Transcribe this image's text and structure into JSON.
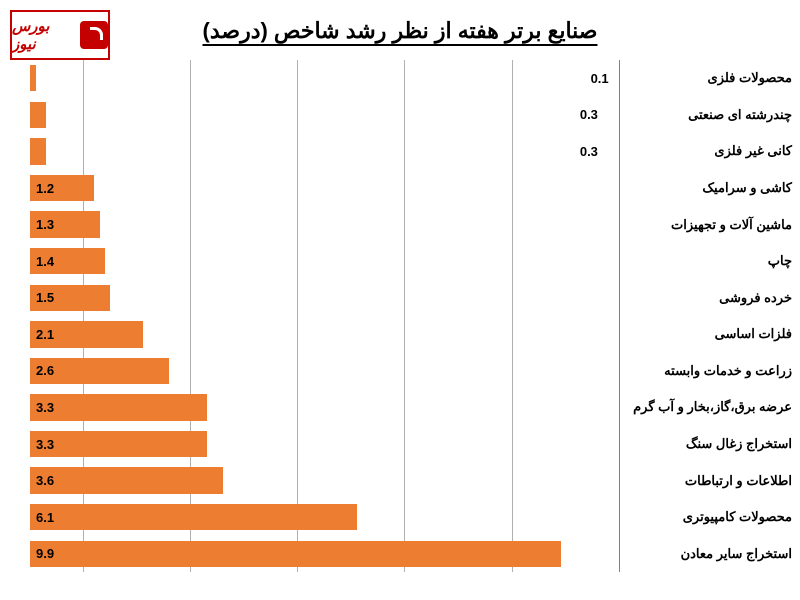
{
  "logo_text": "بورس نیوز",
  "title": "صنایع برتر هفته از نظر رشد شاخص (درصد)",
  "chart": {
    "type": "bar-horizontal",
    "max_value": 11,
    "bar_color": "#ed7d31",
    "background": "#ffffff",
    "grid_color": "#b0b0b0",
    "title_fontsize": 22,
    "label_fontsize": 13,
    "value_fontsize": 13,
    "gridlines": [
      0,
      2,
      4,
      6,
      8,
      10
    ],
    "items": [
      {
        "label": "محصولات فلزی",
        "value": 0.1
      },
      {
        "label": "چندرشته ای صنعتی",
        "value": 0.3
      },
      {
        "label": "کانی غیر فلزی",
        "value": 0.3
      },
      {
        "label": "کاشی و سرامیک",
        "value": 1.2
      },
      {
        "label": "ماشین آلات و تجهیزات",
        "value": 1.3
      },
      {
        "label": "چاپ",
        "value": 1.4
      },
      {
        "label": "خرده فروشی",
        "value": 1.5
      },
      {
        "label": "فلزات اساسی",
        "value": 2.1
      },
      {
        "label": "زراعت و خدمات وابسته",
        "value": 2.6
      },
      {
        "label": "عرضه برق،گاز،بخار و آب گرم",
        "value": 3.3
      },
      {
        "label": "استخراج زغال سنگ",
        "value": 3.3
      },
      {
        "label": "اطلاعات و ارتباطات",
        "value": 3.6
      },
      {
        "label": "محصولات کامپیوتری",
        "value": 6.1
      },
      {
        "label": "استخراج سایر معادن",
        "value": 9.9
      }
    ]
  }
}
